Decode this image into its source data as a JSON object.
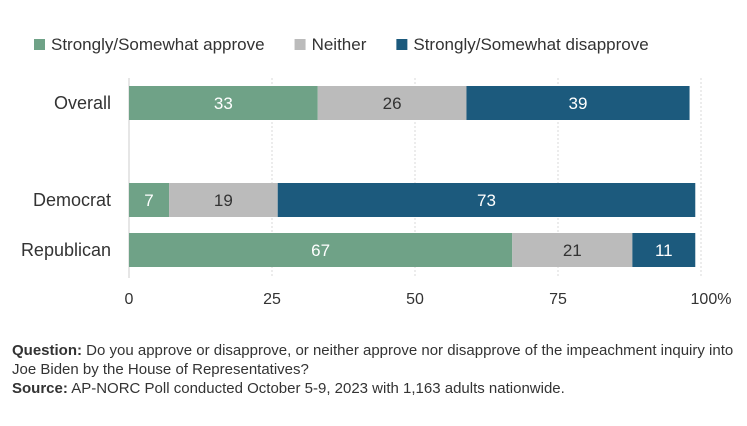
{
  "chart_data": {
    "type": "bar",
    "orientation": "horizontal",
    "stacked": true,
    "categories": [
      "Overall",
      "Democrat",
      "Republican"
    ],
    "series": [
      {
        "name": "Strongly/Somewhat approve",
        "color": "#6fa287",
        "label_color": "#ffffff",
        "values": [
          33,
          7,
          67
        ]
      },
      {
        "name": "Neither",
        "color": "#bbbbbb",
        "label_color": "#333333",
        "values": [
          26,
          19,
          21
        ]
      },
      {
        "name": "Strongly/Somewhat disapprove",
        "color": "#1c5a7d",
        "label_color": "#ffffff",
        "values": [
          39,
          73,
          11
        ]
      }
    ],
    "x_ticks": [
      "0",
      "25",
      "50",
      "75",
      "100%"
    ],
    "xlim": [
      0,
      100
    ],
    "grid": true,
    "legend_position": "top"
  },
  "footnote": {
    "question_label": "Question:",
    "question_text": "Do you approve or disapprove, or neither approve nor disapprove of the impeachment inquiry into Joe Biden by the House of Representatives?",
    "source_label": "Source:",
    "source_text": "AP-NORC Poll conducted October 5-9, 2023 with 1,163 adults nationwide."
  }
}
